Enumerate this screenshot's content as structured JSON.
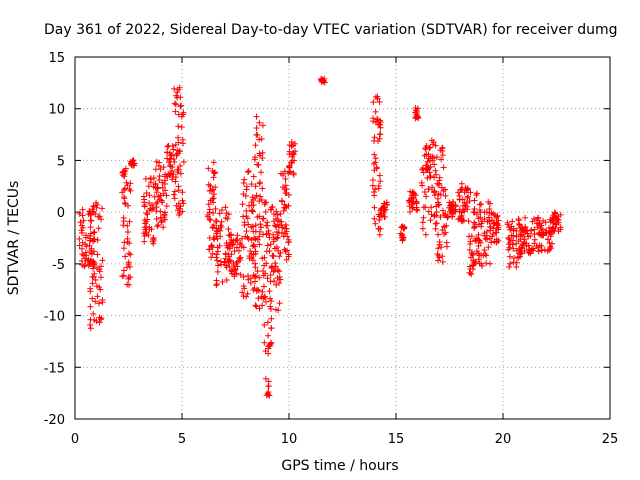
{
  "chart_data": {
    "type": "scatter",
    "title": "Day 361 of 2022, Sidereal Day-to-day VTEC variation (SDTVAR) for receiver dumg",
    "xlabel": "GPS time / hours",
    "ylabel": "SDTVAR / TECUs",
    "xlim": [
      0,
      25
    ],
    "ylim": [
      -20,
      15
    ],
    "xticks": [
      0,
      5,
      10,
      15,
      20,
      25
    ],
    "yticks": [
      -20,
      -15,
      -10,
      -5,
      0,
      5,
      10,
      15
    ],
    "xtick_labels": [
      "0",
      "5",
      "10",
      "15",
      "20",
      "25"
    ],
    "ytick_labels": [
      "-20",
      "-15",
      "-10",
      "-5",
      "0",
      "5",
      "10",
      "15"
    ],
    "grid": true,
    "marker": "+",
    "color": "#ff0000",
    "series": [
      {
        "name": "SDTVAR",
        "segments": [
          {
            "t0": 0.2,
            "t1": 0.9,
            "lo": -5.5,
            "hi": 0.5
          },
          {
            "t0": 0.7,
            "t1": 1.3,
            "lo": -12,
            "hi": 1.0
          },
          {
            "t0": 2.2,
            "t1": 2.6,
            "lo": -7.2,
            "hi": 4.5
          },
          {
            "t0": 2.6,
            "t1": 2.8,
            "lo": 4.5,
            "hi": 5.2
          },
          {
            "t0": 3.2,
            "t1": 3.7,
            "lo": -3.5,
            "hi": 3.5
          },
          {
            "t0": 3.7,
            "t1": 4.3,
            "lo": -1.5,
            "hi": 5.0
          },
          {
            "t0": 4.3,
            "t1": 4.6,
            "lo": 3.0,
            "hi": 6.5
          },
          {
            "t0": 4.6,
            "t1": 5.1,
            "lo": -0.5,
            "hi": 12.2
          },
          {
            "t0": 6.2,
            "t1": 6.6,
            "lo": -4.5,
            "hi": 5.0
          },
          {
            "t0": 6.6,
            "t1": 7.2,
            "lo": -7.5,
            "hi": 0.5
          },
          {
            "t0": 7.2,
            "t1": 7.8,
            "lo": -6.5,
            "hi": -2.0
          },
          {
            "t0": 7.8,
            "t1": 8.4,
            "lo": -8.5,
            "hi": 4.0
          },
          {
            "t0": 8.4,
            "t1": 8.8,
            "lo": -10,
            "hi": 9.3
          },
          {
            "t0": 8.8,
            "t1": 9.2,
            "lo": -18,
            "hi": 1.0
          },
          {
            "t0": 9.2,
            "t1": 9.6,
            "lo": -9.5,
            "hi": 0.5
          },
          {
            "t0": 9.6,
            "t1": 10.0,
            "lo": -5.0,
            "hi": 4.0
          },
          {
            "t0": 10.0,
            "t1": 10.3,
            "lo": 3.5,
            "hi": 6.8
          },
          {
            "t0": 11.5,
            "t1": 11.7,
            "lo": 12.5,
            "hi": 12.9
          },
          {
            "t0": 13.9,
            "t1": 14.3,
            "lo": -2.5,
            "hi": 11.2
          },
          {
            "t0": 14.3,
            "t1": 14.6,
            "lo": -0.5,
            "hi": 1.0
          },
          {
            "t0": 15.2,
            "t1": 15.4,
            "lo": -2.8,
            "hi": -1.0
          },
          {
            "t0": 15.6,
            "t1": 16.0,
            "lo": 0.0,
            "hi": 2.0
          },
          {
            "t0": 15.9,
            "t1": 16.1,
            "lo": 9.0,
            "hi": 10.2
          },
          {
            "t0": 16.2,
            "t1": 16.8,
            "lo": -2.5,
            "hi": 7.0
          },
          {
            "t0": 16.8,
            "t1": 17.4,
            "lo": -5.0,
            "hi": 6.5
          },
          {
            "t0": 17.4,
            "t1": 17.8,
            "lo": -0.5,
            "hi": 1.0
          },
          {
            "t0": 17.9,
            "t1": 18.4,
            "lo": -1.0,
            "hi": 2.8
          },
          {
            "t0": 18.4,
            "t1": 18.8,
            "lo": -6.0,
            "hi": 2.0
          },
          {
            "t0": 18.8,
            "t1": 19.4,
            "lo": -5.5,
            "hi": 1.2
          },
          {
            "t0": 19.4,
            "t1": 19.8,
            "lo": -3.0,
            "hi": 0.0
          },
          {
            "t0": 20.2,
            "t1": 20.8,
            "lo": -5.5,
            "hi": -0.5
          },
          {
            "t0": 20.8,
            "t1": 21.6,
            "lo": -4.0,
            "hi": -0.5
          },
          {
            "t0": 21.6,
            "t1": 22.3,
            "lo": -3.8,
            "hi": -0.5
          },
          {
            "t0": 22.3,
            "t1": 22.7,
            "lo": -2.0,
            "hi": 0.0
          }
        ]
      }
    ]
  }
}
